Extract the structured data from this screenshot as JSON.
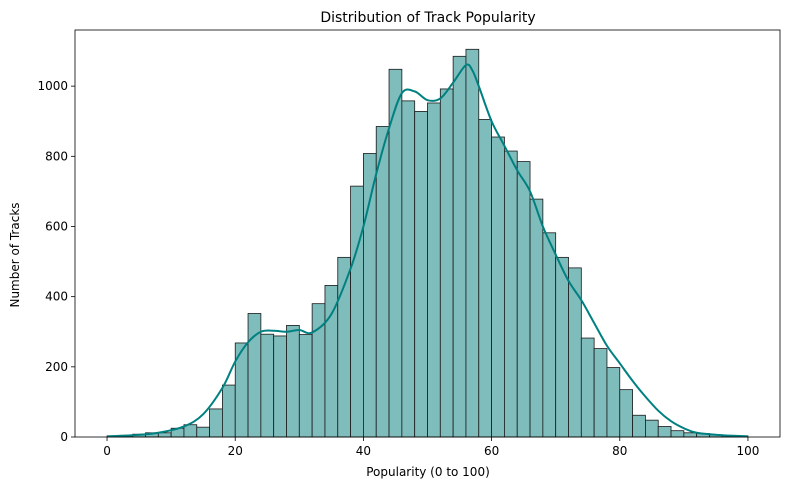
{
  "chart_data": {
    "type": "bar",
    "title": "Distribution of Track Popularity",
    "xlabel": "Popularity (0 to 100)",
    "ylabel": "Number of Tracks",
    "xlim": [
      -5,
      105
    ],
    "ylim": [
      0,
      1160
    ],
    "x_ticks": [
      "0",
      "20",
      "40",
      "60",
      "80",
      "100"
    ],
    "y_ticks": [
      "0",
      "200",
      "400",
      "600",
      "800",
      "1000"
    ],
    "bin_width": 2,
    "bin_starts": [
      0,
      2,
      4,
      6,
      8,
      10,
      12,
      14,
      16,
      18,
      20,
      22,
      24,
      26,
      28,
      30,
      32,
      34,
      36,
      38,
      40,
      42,
      44,
      46,
      48,
      50,
      52,
      54,
      56,
      58,
      60,
      62,
      64,
      66,
      68,
      70,
      72,
      74,
      76,
      78,
      80,
      82,
      84,
      86,
      88,
      90,
      92,
      94,
      96,
      98
    ],
    "values": [
      3,
      3,
      8,
      12,
      12,
      25,
      35,
      28,
      80,
      148,
      268,
      352,
      293,
      288,
      318,
      292,
      380,
      432,
      512,
      715,
      808,
      885,
      1048,
      958,
      928,
      952,
      992,
      1085,
      1105,
      905,
      855,
      815,
      785,
      678,
      582,
      512,
      482,
      282,
      252,
      198,
      135,
      62,
      48,
      30,
      18,
      12,
      10,
      6,
      4,
      3
    ],
    "kde_x": [
      0,
      4,
      8,
      12,
      15,
      18,
      20,
      22,
      24,
      26,
      28,
      30,
      32,
      35,
      38,
      40,
      42,
      44,
      46,
      48,
      50,
      52,
      54,
      56,
      57,
      58,
      60,
      62,
      64,
      66,
      68,
      70,
      72,
      74,
      76,
      78,
      80,
      82,
      84,
      86,
      88,
      90,
      92,
      96,
      100
    ],
    "kde_y": [
      2,
      5,
      12,
      30,
      65,
      140,
      215,
      270,
      300,
      303,
      300,
      305,
      298,
      350,
      480,
      600,
      750,
      880,
      980,
      985,
      960,
      965,
      1010,
      1060,
      1045,
      1000,
      900,
      830,
      760,
      700,
      600,
      520,
      445,
      390,
      325,
      260,
      210,
      160,
      115,
      75,
      45,
      25,
      12,
      5,
      2
    ],
    "colors": {
      "bar_fill": "#7fbcbc",
      "bar_edge": "#1a1a1a",
      "kde_line": "#008080",
      "axis": "#000000"
    },
    "grid": false,
    "legend": "none"
  }
}
